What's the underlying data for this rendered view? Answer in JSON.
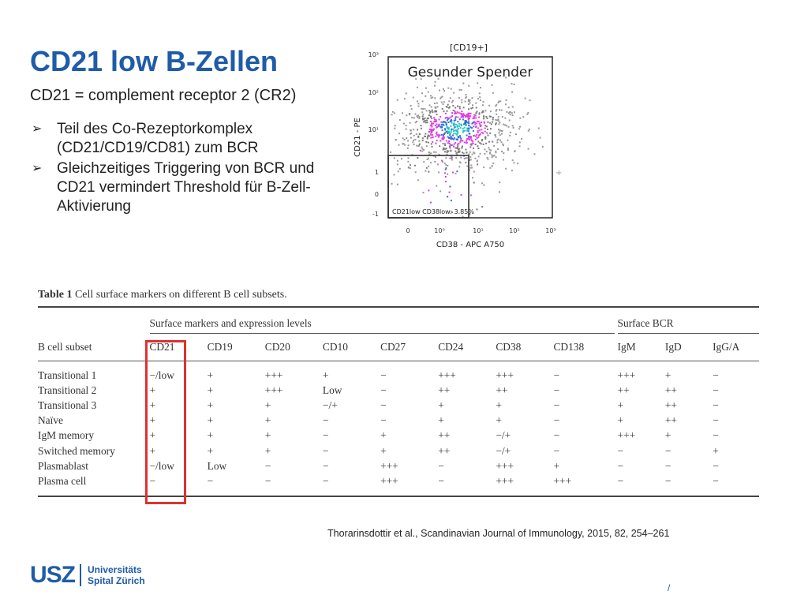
{
  "slide": {
    "title": "CD21 low B-Zellen",
    "subtitle": "CD21 = complement receptor 2 (CR2)",
    "bullets": [
      "Teil des Co-Rezeptorkomplex (CD21/CD19/CD81) zum BCR",
      "Gleichzeitiges Triggering von BCR und CD21 vermindert Threshold für B-Zell-Aktivierung"
    ],
    "bullet_icon": "arrow-right-icon"
  },
  "flow_plot": {
    "gate_header": "[CD19+]",
    "panel_label": "Gesunder Spender",
    "x_axis_label": "CD38 - APC A750",
    "y_axis_label": "CD21 - PE",
    "x_ticks": [
      "0",
      "10⁰",
      "10¹",
      "10²",
      "10³"
    ],
    "y_ticks": [
      "10³",
      "10²",
      "10¹",
      "1",
      "0",
      "-1"
    ],
    "gate_label": "CD21low CD38low: 3.85%",
    "gate_percent": 3.85
  },
  "table": {
    "caption_bold": "Table 1",
    "caption_rest": "Cell surface markers on different B cell subsets.",
    "group_markers": "Surface markers and expression levels",
    "group_bcr": "Surface BCR",
    "columns": [
      "B cell subset",
      "CD21",
      "CD19",
      "CD20",
      "CD10",
      "CD27",
      "CD24",
      "CD38",
      "CD138",
      "IgM",
      "IgD",
      "IgG/A"
    ],
    "rows": [
      [
        "Transitional 1",
        "−/low",
        "+",
        "+++",
        "+",
        "−",
        "+++",
        "+++",
        "−",
        "+++",
        "+",
        "−"
      ],
      [
        "Transitional 2",
        "+",
        "+",
        "+++",
        "Low",
        "−",
        "++",
        "++",
        "−",
        "++",
        "++",
        "−"
      ],
      [
        "Transitional 3",
        "+",
        "+",
        "+",
        "−/+",
        "−",
        "+",
        "+",
        "−",
        "+",
        "++",
        "−"
      ],
      [
        "Naïve",
        "+",
        "+",
        "+",
        "−",
        "−",
        "+",
        "+",
        "−",
        "+",
        "++",
        "−"
      ],
      [
        "IgM memory",
        "+",
        "+",
        "+",
        "−",
        "+",
        "++",
        "−/+",
        "−",
        "+++",
        "+",
        "−"
      ],
      [
        "Switched memory",
        "+",
        "+",
        "+",
        "−",
        "+",
        "++",
        "−/+",
        "−",
        "−",
        "−",
        "+"
      ],
      [
        "Plasmablast",
        "−/low",
        "Low",
        "−",
        "−",
        "+++",
        "−",
        "+++",
        "+",
        "−",
        "−",
        "−"
      ],
      [
        "Plasma cell",
        "−",
        "−",
        "−",
        "−",
        "+++",
        "−",
        "+++",
        "+++",
        "−",
        "−",
        "−"
      ]
    ]
  },
  "citation": {
    "authors": "Thorarinsdottir et al.,",
    "journal": "Scandinavian Journal of Immunology, 2015, 82, 254–261"
  },
  "footer": {
    "logo_abbr": "USZ",
    "logo_line1": "Universitäts",
    "logo_line2": "Spital Zürich",
    "page_mark": "/"
  },
  "colors": {
    "brand_blue": "#1f5ca8",
    "highlight_red": "#e03030"
  }
}
